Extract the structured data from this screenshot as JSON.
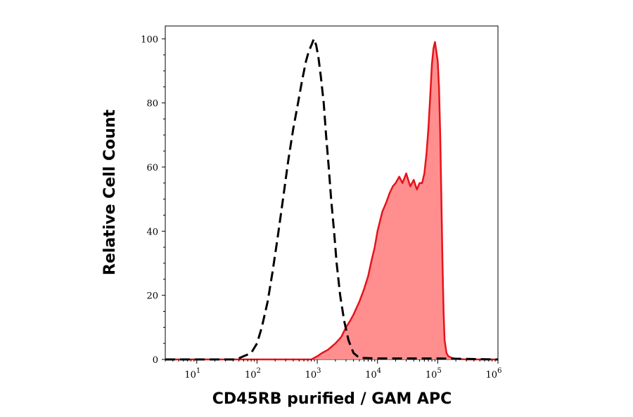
{
  "chart_data": {
    "type": "area",
    "xlabel": "CD45RB purified / GAM APC",
    "ylabel": "Relative Cell Count",
    "x_scale": "log",
    "xlim": [
      3,
      1000000
    ],
    "ylim": [
      0,
      104
    ],
    "x_ticks": [
      {
        "base": "10",
        "exp": "1",
        "value": 10
      },
      {
        "base": "10",
        "exp": "2",
        "value": 100
      },
      {
        "base": "10",
        "exp": "3",
        "value": 1000
      },
      {
        "base": "10",
        "exp": "4",
        "value": 10000
      },
      {
        "base": "10",
        "exp": "5",
        "value": 100000
      },
      {
        "base": "10",
        "exp": "6",
        "value": 1000000
      }
    ],
    "y_ticks": [
      {
        "label": "0",
        "value": 0
      },
      {
        "label": "20",
        "value": 20
      },
      {
        "label": "40",
        "value": 40
      },
      {
        "label": "60",
        "value": 60
      },
      {
        "label": "80",
        "value": 80
      },
      {
        "label": "100",
        "value": 100
      }
    ],
    "series": [
      {
        "style": "dashed",
        "color": "#000000",
        "x": [
          3,
          45,
          60,
          80,
          100,
          120,
          150,
          180,
          220,
          270,
          330,
          400,
          480,
          560,
          650,
          720,
          800,
          880,
          960,
          1050,
          1150,
          1280,
          1400,
          1550,
          1700,
          1900,
          2100,
          2400,
          2800,
          3300,
          4000,
          5000,
          10000,
          50000,
          100000,
          1000000
        ],
        "y": [
          0,
          0,
          1,
          2,
          5,
          10,
          18,
          27,
          38,
          50,
          62,
          72,
          80,
          87,
          93,
          96,
          98,
          100,
          98,
          94,
          88,
          80,
          70,
          60,
          50,
          40,
          30,
          20,
          12,
          6,
          2,
          0.5,
          0.3,
          0.3,
          0.3,
          0
        ]
      },
      {
        "style": "filled",
        "color": "#e8121a",
        "fill": "#ff8f8f",
        "x": [
          3,
          800,
          1000,
          1200,
          1500,
          2000,
          2500,
          3000,
          3500,
          4000,
          5000,
          6000,
          7000,
          8000,
          9000,
          10000,
          12000,
          14000,
          16000,
          18000,
          20000,
          23000,
          26000,
          30000,
          35000,
          40000,
          45000,
          50000,
          55000,
          60000,
          65000,
          70000,
          75000,
          80000,
          85000,
          90000,
          95000,
          100000,
          105000,
          110000,
          115000,
          120000,
          125000,
          130000,
          140000,
          150000,
          170000,
          200000,
          300000,
          1000000
        ],
        "y": [
          0,
          0,
          1,
          2,
          3,
          5,
          7,
          10,
          12,
          14,
          18,
          22,
          26,
          31,
          35,
          40,
          46,
          49,
          52,
          54,
          55,
          57,
          55,
          58,
          54,
          56,
          53,
          55,
          55,
          58,
          64,
          72,
          82,
          92,
          97,
          99,
          96,
          93,
          85,
          70,
          50,
          30,
          15,
          6,
          2,
          1,
          0.5,
          0.2,
          0,
          0
        ]
      }
    ]
  }
}
